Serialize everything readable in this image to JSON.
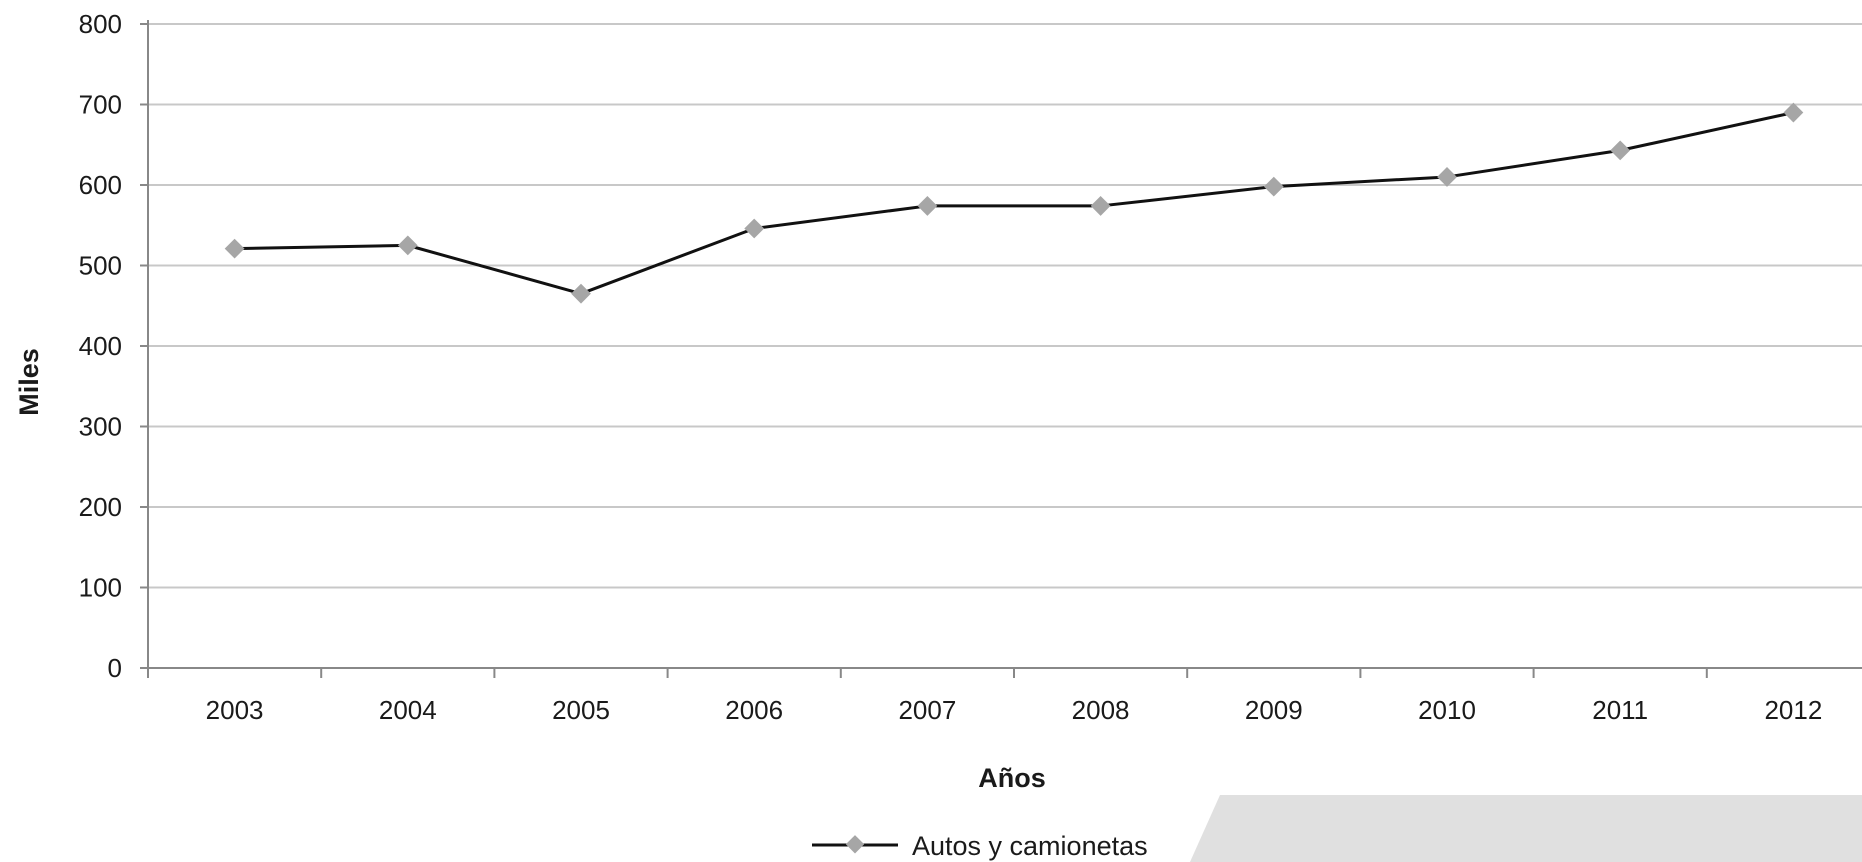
{
  "chart_data": {
    "type": "line",
    "title": "",
    "xlabel": "Años",
    "ylabel": "Miles",
    "categories": [
      "2003",
      "2004",
      "2005",
      "2006",
      "2007",
      "2008",
      "2009",
      "2010",
      "2011",
      "2012"
    ],
    "ylim": [
      0,
      800
    ],
    "yticks": [
      "0",
      "100",
      "200",
      "300",
      "400",
      "500",
      "600",
      "700",
      "800"
    ],
    "grid": true,
    "legend_position": "bottom",
    "series": [
      {
        "name": "Autos y camionetas",
        "values": [
          521,
          525,
          465,
          546,
          574,
          574,
          598,
          610,
          643,
          690
        ],
        "line_color": "#111111",
        "marker_color": "#a6a6a6"
      }
    ]
  },
  "colors": {
    "grid": "#c8c8c8",
    "axis": "#888888",
    "decoration": "#e0e0e0"
  }
}
